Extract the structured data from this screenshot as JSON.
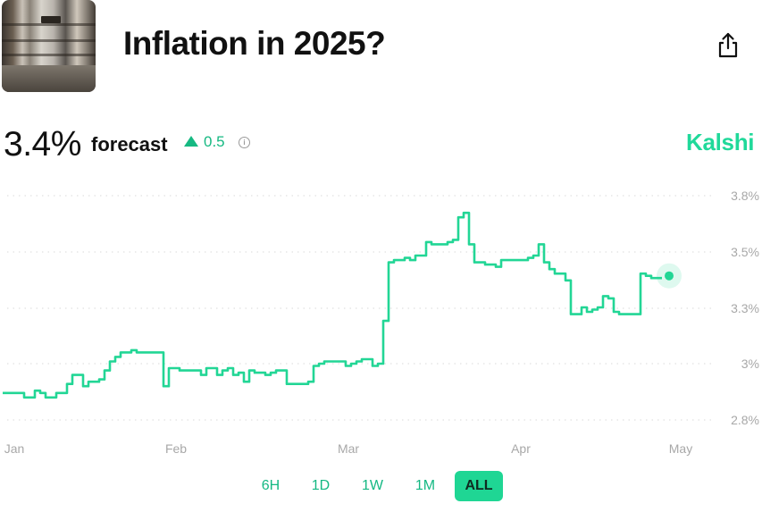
{
  "header": {
    "title": "Inflation in 2025?"
  },
  "summary": {
    "value": "3.4%",
    "label": "forecast",
    "change": "0.5",
    "brand": "Kalshi"
  },
  "colors": {
    "accent": "#20d99a",
    "line": "#22d695",
    "gridline": "#d9d9d9",
    "axis_text": "#a8a8a8"
  },
  "icons": {
    "share": "share-icon",
    "info": "info-icon",
    "change": "triangle-up-icon"
  },
  "ranges": {
    "options": [
      "6H",
      "1D",
      "1W",
      "1M",
      "ALL"
    ],
    "selected": "ALL"
  },
  "chart_data": {
    "type": "line",
    "title": "",
    "xlabel": "",
    "ylabel": "",
    "grid": true,
    "x_tick_labels": [
      "Jan",
      "Feb",
      "Mar",
      "Apr",
      "May"
    ],
    "y_tick_labels": [
      "2.8%",
      "3%",
      "3.3%",
      "3.5%",
      "3.8%"
    ],
    "ylim": [
      2.75,
      3.85
    ],
    "x_unit": "days since Jan 1",
    "series": [
      {
        "values_x": [
          0,
          2,
          4,
          6,
          7,
          8,
          9,
          10,
          12,
          13,
          15,
          16,
          18,
          19,
          20,
          21,
          22,
          23,
          24,
          25,
          26,
          27,
          28,
          29,
          30,
          31,
          32,
          33,
          34,
          36,
          37,
          38,
          40,
          41,
          42,
          43,
          44,
          45,
          46,
          47,
          48,
          49,
          50,
          51,
          53,
          54,
          55,
          56,
          57,
          58,
          59,
          60,
          62,
          63,
          64,
          65,
          66,
          67,
          68,
          69,
          70,
          71,
          72,
          73,
          74,
          75,
          76,
          77,
          78,
          79,
          80,
          81,
          82,
          83,
          84,
          85,
          86,
          87,
          88,
          89,
          90,
          91,
          92,
          93,
          94,
          95,
          96,
          97,
          98,
          99,
          100,
          101,
          102,
          103,
          104,
          105,
          106,
          107,
          108,
          109,
          110,
          111,
          112,
          113,
          114,
          115,
          116,
          117,
          118,
          119,
          120,
          121,
          122,
          123
        ],
        "values_y": [
          2.92,
          2.92,
          2.9,
          2.93,
          2.92,
          2.9,
          2.9,
          2.92,
          2.96,
          3.0,
          2.95,
          2.97,
          2.98,
          3.02,
          3.06,
          3.08,
          3.1,
          3.1,
          3.11,
          3.1,
          3.1,
          3.1,
          3.1,
          3.1,
          2.95,
          3.03,
          3.03,
          3.02,
          3.02,
          3.02,
          3.0,
          3.03,
          3.0,
          3.02,
          3.03,
          3.0,
          3.01,
          2.97,
          3.02,
          3.01,
          3.01,
          3.0,
          3.01,
          3.02,
          2.96,
          2.96,
          2.96,
          2.96,
          2.97,
          3.04,
          3.05,
          3.06,
          3.06,
          3.06,
          3.04,
          3.05,
          3.06,
          3.07,
          3.07,
          3.04,
          3.05,
          3.24,
          3.5,
          3.51,
          3.51,
          3.52,
          3.51,
          3.53,
          3.53,
          3.59,
          3.58,
          3.58,
          3.58,
          3.59,
          3.6,
          3.7,
          3.72,
          3.58,
          3.5,
          3.5,
          3.49,
          3.49,
          3.48,
          3.51,
          3.51,
          3.51,
          3.51,
          3.51,
          3.52,
          3.53,
          3.58,
          3.5,
          3.47,
          3.45,
          3.45,
          3.42,
          3.27,
          3.27,
          3.3,
          3.28,
          3.29,
          3.3,
          3.35,
          3.34,
          3.28,
          3.27,
          3.27,
          3.27,
          3.27,
          3.45,
          3.44,
          3.43,
          3.43,
          3.43
        ]
      }
    ],
    "current_value": 3.44
  }
}
